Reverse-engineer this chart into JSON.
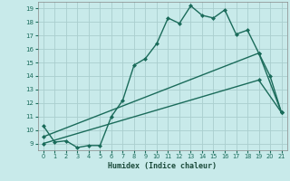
{
  "title": "",
  "xlabel": "Humidex (Indice chaleur)",
  "xlim": [
    -0.5,
    21.5
  ],
  "ylim": [
    8.5,
    19.5
  ],
  "xticks": [
    0,
    1,
    2,
    3,
    4,
    5,
    6,
    7,
    8,
    9,
    10,
    11,
    12,
    13,
    14,
    15,
    16,
    17,
    18,
    19,
    20,
    21
  ],
  "yticks": [
    9,
    10,
    11,
    12,
    13,
    14,
    15,
    16,
    17,
    18,
    19
  ],
  "bg_color": "#c8eaea",
  "grid_color": "#aacece",
  "line_color": "#1a6b5a",
  "line1_x": [
    0,
    1,
    2,
    3,
    4,
    5,
    6,
    7,
    8,
    9,
    10,
    11,
    12,
    13,
    14,
    15,
    16,
    17,
    18,
    19,
    20,
    21
  ],
  "line1_y": [
    10.3,
    9.1,
    9.2,
    8.7,
    8.85,
    8.85,
    11.0,
    12.2,
    14.8,
    15.3,
    16.4,
    18.3,
    17.9,
    19.2,
    18.5,
    18.3,
    18.9,
    17.1,
    17.4,
    15.7,
    14.0,
    11.3
  ],
  "line2_x": [
    0,
    19,
    21
  ],
  "line2_y": [
    9.5,
    15.7,
    11.3
  ],
  "line3_x": [
    0,
    19,
    21
  ],
  "line3_y": [
    9.0,
    13.7,
    11.3
  ],
  "markersize": 2.5,
  "linewidth": 1.0
}
